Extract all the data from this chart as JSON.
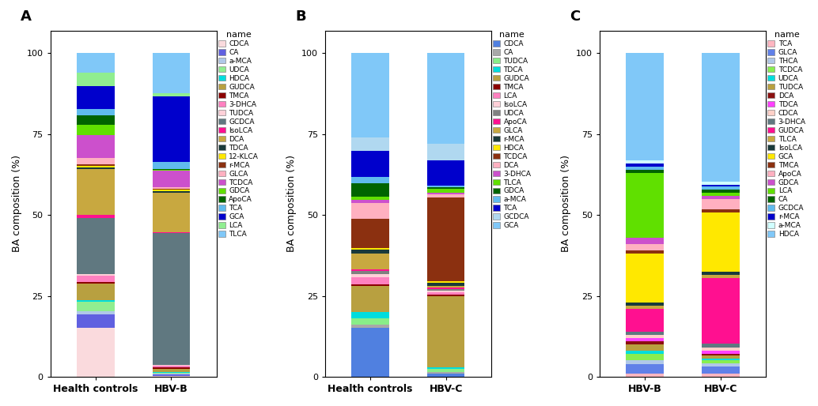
{
  "panel_A": {
    "title": "A",
    "categories": [
      "Health controls",
      "HBV-B"
    ],
    "ylabel": "BA composition (%)",
    "names": [
      "CDCA",
      "CA",
      "a-MCA",
      "UDCA",
      "HDCA",
      "GUDCA",
      "TMCA",
      "3-DHCA",
      "TUDCA",
      "GCDCA",
      "IsoLCA",
      "DCA",
      "TDCA",
      "12-KLCA",
      "r-MCA",
      "GLCA",
      "TCDCA",
      "GDCA",
      "ApoCA",
      "TCA",
      "GCA",
      "LCA",
      "TLCA"
    ],
    "colors": [
      "#FADADD",
      "#6060E0",
      "#B0C8E8",
      "#90EE90",
      "#00DDDD",
      "#B8A040",
      "#8B0000",
      "#FF80C0",
      "#FFD0D8",
      "#607880",
      "#FF1090",
      "#C8A840",
      "#1A3A3A",
      "#FFE800",
      "#8B3010",
      "#FFB0C0",
      "#CC50CC",
      "#60E000",
      "#006400",
      "#60BBEE",
      "#0000CC",
      "#90EE90",
      "#80C8F8"
    ],
    "hc": [
      15,
      4,
      1,
      3,
      0.5,
      5,
      0.5,
      2,
      0.5,
      17,
      1,
      14,
      0.5,
      0.5,
      0.5,
      2,
      7,
      3,
      3,
      2,
      7,
      4,
      6
    ],
    "hbvb": [
      0.3,
      0.3,
      0.3,
      0.3,
      0.3,
      1,
      0.3,
      0.5,
      0.3,
      40,
      0.3,
      12,
      0.3,
      0.5,
      0.3,
      0.5,
      5,
      0.3,
      0.3,
      2,
      20,
      1,
      12
    ]
  },
  "panel_B": {
    "title": "B",
    "categories": [
      "Health controls",
      "HBV-C"
    ],
    "ylabel": "BA composition (%)",
    "names": [
      "CDCA",
      "CA",
      "TUDCA",
      "TDCA",
      "GUDCA",
      "TMCA",
      "LCA",
      "IsoLCA",
      "UDCA",
      "ApoCA",
      "GLCA",
      "r-MCA",
      "HDCA",
      "TCDCA",
      "DCA",
      "3-DHCA",
      "TLCA",
      "GDCA",
      "a-MCA",
      "TCA",
      "GCDCA",
      "GCA"
    ],
    "colors": [
      "#5080E0",
      "#A8A8A8",
      "#88EE88",
      "#00DDDD",
      "#B8A040",
      "#8B0000",
      "#FF80C0",
      "#FFD0D8",
      "#808080",
      "#FF1090",
      "#C8A840",
      "#1A3A3A",
      "#FFE800",
      "#8B3010",
      "#FFB0C0",
      "#CC50CC",
      "#60E000",
      "#006400",
      "#60BBEE",
      "#0000CC",
      "#B0D8F0",
      "#80C8F8"
    ],
    "hc": [
      15,
      1,
      2,
      2,
      8,
      0.5,
      2,
      1,
      1,
      0.5,
      5,
      1,
      0.5,
      9,
      5,
      1,
      1,
      4,
      2,
      8,
      4,
      26
    ],
    "hbvc": [
      1,
      0.5,
      1,
      0.5,
      22,
      0.5,
      0.5,
      0.5,
      0.5,
      0.5,
      0.5,
      1,
      0.5,
      26,
      1,
      0.5,
      1,
      0.5,
      0.5,
      8,
      5,
      28
    ]
  },
  "panel_C": {
    "title": "C",
    "categories": [
      "HBV-B",
      "HBV-C"
    ],
    "ylabel": "BA composition (%)",
    "names": [
      "TCA",
      "GLCA",
      "THCA",
      "TCDCA",
      "UDCA",
      "TUDCA",
      "DCA",
      "TDCA",
      "CDCA",
      "3-DHCA",
      "GUDCA",
      "TLCA",
      "IsoLCA",
      "GCA",
      "TMCA",
      "ApoCA",
      "GDCA",
      "LCA",
      "CA",
      "GCDCA",
      "r-MCA",
      "a-MCA",
      "HDCA"
    ],
    "colors": [
      "#FFB6C1",
      "#6080E8",
      "#B0C8E8",
      "#88EE50",
      "#00DDDD",
      "#B8A040",
      "#8B1010",
      "#FF40FF",
      "#FFD0C8",
      "#607880",
      "#FF1090",
      "#C8A840",
      "#1A3A3A",
      "#FFE800",
      "#8B3010",
      "#FFB0C0",
      "#CC50CC",
      "#60E000",
      "#006400",
      "#60BBEE",
      "#0000CC",
      "#D0FFFF",
      "#80C8F8"
    ],
    "hbvb": [
      1,
      3,
      1,
      2,
      1,
      2,
      1,
      1,
      1,
      1,
      7,
      1,
      1,
      15,
      1,
      2,
      2,
      20,
      1,
      1,
      1,
      1,
      33
    ],
    "hbvc": [
      1,
      2,
      1,
      1,
      0.5,
      1,
      0.5,
      1,
      1,
      1,
      20,
      1,
      1,
      18,
      1,
      3,
      1,
      1,
      1,
      1,
      0.5,
      1,
      39
    ]
  }
}
